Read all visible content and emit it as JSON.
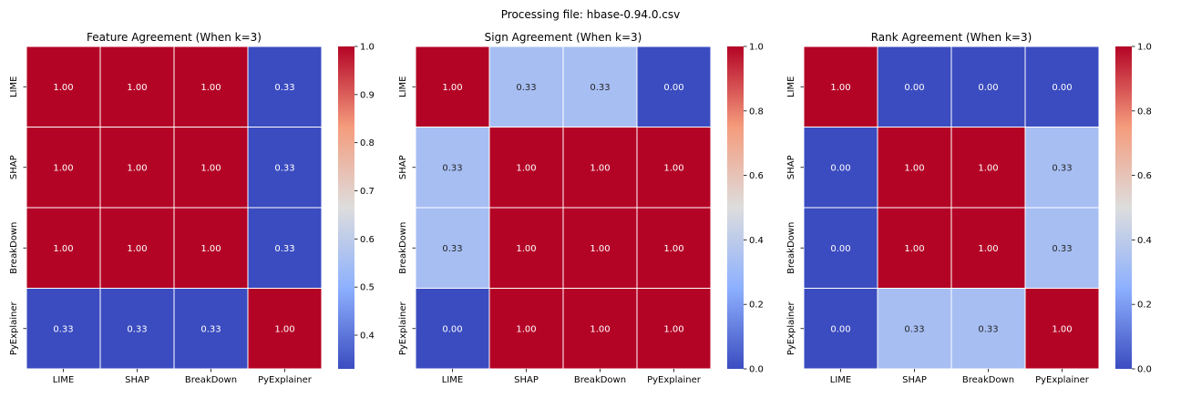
{
  "figure": {
    "suptitle": "Processing file: hbase-0.94.0.csv"
  },
  "chart_data": [
    {
      "type": "heatmap",
      "title": "Feature Agreement (When k=3)",
      "x_labels": [
        "LIME",
        "SHAP",
        "BreakDown",
        "PyExplainer"
      ],
      "y_labels": [
        "LIME",
        "SHAP",
        "BreakDown",
        "PyExplainer"
      ],
      "values": [
        [
          1.0,
          1.0,
          1.0,
          0.33
        ],
        [
          1.0,
          1.0,
          1.0,
          0.33
        ],
        [
          1.0,
          1.0,
          1.0,
          0.33
        ],
        [
          0.33,
          0.33,
          0.33,
          1.0
        ]
      ],
      "value_format": "2 decimals",
      "colormap": "coolwarm",
      "colorbar": {
        "min": 0.33,
        "max": 1.0,
        "ticks": [
          "0.4",
          "0.5",
          "0.6",
          "0.7",
          "0.8",
          "0.9",
          "1.0"
        ]
      }
    },
    {
      "type": "heatmap",
      "title": "Sign Agreement (When k=3)",
      "x_labels": [
        "LIME",
        "SHAP",
        "BreakDown",
        "PyExplainer"
      ],
      "y_labels": [
        "LIME",
        "SHAP",
        "BreakDown",
        "PyExplainer"
      ],
      "values": [
        [
          1.0,
          0.33,
          0.33,
          0.0
        ],
        [
          0.33,
          1.0,
          1.0,
          1.0
        ],
        [
          0.33,
          1.0,
          1.0,
          1.0
        ],
        [
          0.0,
          1.0,
          1.0,
          1.0
        ]
      ],
      "value_format": "2 decimals",
      "colormap": "coolwarm",
      "colorbar": {
        "min": 0.0,
        "max": 1.0,
        "ticks": [
          "0.0",
          "0.2",
          "0.4",
          "0.6",
          "0.8",
          "1.0"
        ]
      }
    },
    {
      "type": "heatmap",
      "title": "Rank Agreement (When k=3)",
      "x_labels": [
        "LIME",
        "SHAP",
        "BreakDown",
        "PyExplainer"
      ],
      "y_labels": [
        "LIME",
        "SHAP",
        "BreakDown",
        "PyExplainer"
      ],
      "values": [
        [
          1.0,
          0.0,
          0.0,
          0.0
        ],
        [
          0.0,
          1.0,
          1.0,
          0.33
        ],
        [
          0.0,
          1.0,
          1.0,
          0.33
        ],
        [
          0.0,
          0.33,
          0.33,
          1.0
        ]
      ],
      "value_format": "2 decimals",
      "colormap": "coolwarm",
      "colorbar": {
        "min": 0.0,
        "max": 1.0,
        "ticks": [
          "0.0",
          "0.2",
          "0.4",
          "0.6",
          "0.8",
          "1.0"
        ]
      }
    }
  ]
}
